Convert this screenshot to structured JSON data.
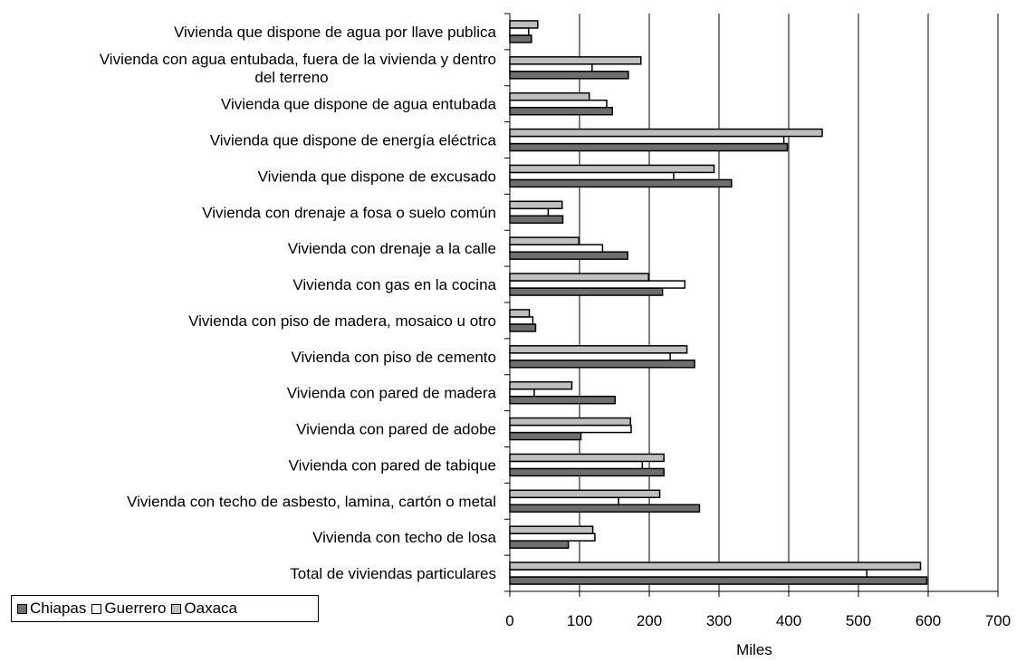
{
  "chart_data": {
    "type": "bar",
    "orientation": "horizontal",
    "categories": [
      "Vivienda que dispone de agua por llave publica",
      "Vivienda con agua entubada, fuera de la vivienda y dentro del terreno",
      "Vivienda que dispone de agua entubada",
      "Vivienda que dispone de energía eléctrica",
      "Vivienda que dispone de excusado",
      "Vivienda con drenaje a fosa o suelo común",
      "Vivienda con drenaje a la calle",
      "Vivienda con gas en la cocina",
      "Vivienda con piso de madera, mosaico u otro",
      "Vivienda con piso de cemento",
      "Vivienda con pared de madera",
      "Vivienda con pared de adobe",
      "Vivienda con pared de tabique",
      "Vivienda con techo de asbesto, lamina, cartón o metal",
      "Vivienda con techo de losa",
      "Total de viviendas particulares"
    ],
    "category_label_lines": [
      [
        "Vivienda que dispone de agua por llave publica"
      ],
      [
        "Vivienda con agua entubada, fuera de la vivienda y dentro",
        "del terreno"
      ],
      [
        "Vivienda que dispone de agua entubada"
      ],
      [
        "Vivienda que dispone de energía eléctrica"
      ],
      [
        "Vivienda que dispone de excusado"
      ],
      [
        "Vivienda con drenaje a fosa o suelo común"
      ],
      [
        "Vivienda con drenaje a la calle"
      ],
      [
        "Vivienda con gas en la cocina"
      ],
      [
        "Vivienda con piso de madera, mosaico u otro"
      ],
      [
        "Vivienda con piso de cemento"
      ],
      [
        "Vivienda con pared de madera"
      ],
      [
        "Vivienda con pared de adobe"
      ],
      [
        "Vivienda con pared de tabique"
      ],
      [
        "Vivienda con techo de asbesto, lamina, cartón o metal"
      ],
      [
        "Vivienda con techo de losa"
      ],
      [
        "Total de viviendas particulares"
      ]
    ],
    "series": [
      {
        "name": "Chiapas",
        "color": "#6e6e6e",
        "values": [
          31,
          170,
          147,
          398,
          318,
          76,
          169,
          219,
          37,
          265,
          151,
          102,
          221,
          272,
          84,
          598
        ]
      },
      {
        "name": "Guerrero",
        "color": "#ffffff",
        "values": [
          27,
          118,
          139,
          393,
          235,
          55,
          133,
          251,
          33,
          230,
          35,
          174,
          190,
          156,
          122,
          512
        ]
      },
      {
        "name": "Oaxaca",
        "color": "#bfbfbf",
        "values": [
          40,
          188,
          114,
          448,
          293,
          75,
          99,
          199,
          28,
          254,
          89,
          173,
          221,
          215,
          119,
          589
        ]
      }
    ],
    "xlabel": "Miles",
    "ylabel": "",
    "xlim": [
      0,
      700
    ],
    "xticks": [
      0,
      100,
      200,
      300,
      400,
      500,
      600,
      700
    ],
    "grid": "vertical",
    "legend_position": "bottom-left"
  }
}
